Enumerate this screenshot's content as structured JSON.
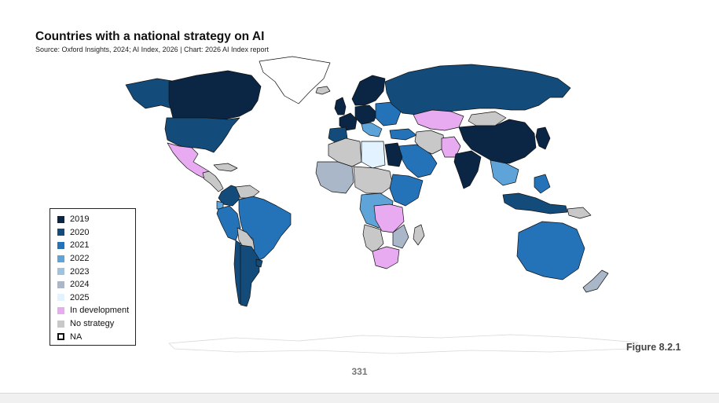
{
  "header": {
    "title": "Countries with a national strategy on AI",
    "source": "Source: Oxford Insights, 2024; AI Index, 2026 | Chart: 2026 AI Index report"
  },
  "colors": {
    "2019": "#0b2545",
    "2020": "#134c7a",
    "2021": "#2472b8",
    "2022": "#5ea4d8",
    "2023": "#9dc3e2",
    "2024": "#a9b7c8",
    "2025": "#e2f2fe",
    "in_development": "#e8aaf0",
    "no_strategy": "#c8c8c8",
    "na": "#ffffff",
    "border": "#111111"
  },
  "legend": {
    "items": [
      {
        "key": "2019",
        "label": "2019"
      },
      {
        "key": "2020",
        "label": "2020"
      },
      {
        "key": "2021",
        "label": "2021"
      },
      {
        "key": "2022",
        "label": "2022"
      },
      {
        "key": "2023",
        "label": "2023"
      },
      {
        "key": "2024",
        "label": "2024"
      },
      {
        "key": "2025",
        "label": "2025"
      },
      {
        "key": "in_development",
        "label": "In development"
      },
      {
        "key": "no_strategy",
        "label": "No strategy"
      },
      {
        "key": "na",
        "label": "NA"
      }
    ]
  },
  "figure_label": "Figure 8.2.1",
  "page_number": "331"
}
